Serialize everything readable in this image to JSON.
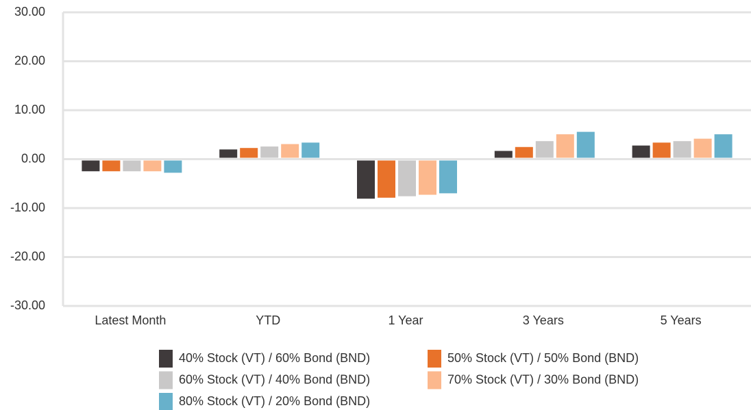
{
  "chart_data": {
    "type": "bar",
    "categories": [
      "Latest Month",
      "YTD",
      "1 Year",
      "3 Years",
      "5 Years"
    ],
    "series": [
      {
        "name": "40% Stock (VT) / 60% Bond (BND)",
        "color": "#3f3a3b",
        "values": [
          -2.2,
          1.7,
          -7.8,
          1.4,
          2.5
        ]
      },
      {
        "name": "50% Stock (VT) / 50% Bond (BND)",
        "color": "#e8722a",
        "values": [
          -2.2,
          2.0,
          -7.6,
          2.2,
          3.1
        ]
      },
      {
        "name": "60% Stock (VT) / 40% Bond (BND)",
        "color": "#c9c8c8",
        "values": [
          -2.2,
          2.3,
          -7.3,
          3.4,
          3.4
        ]
      },
      {
        "name": "70% Stock (VT) / 30% Bond (BND)",
        "color": "#fcb88d",
        "values": [
          -2.2,
          2.8,
          -7.0,
          4.8,
          3.9
        ]
      },
      {
        "name": "80% Stock (VT) / 20% Bond (BND)",
        "color": "#68b1cb",
        "values": [
          -2.5,
          3.1,
          -6.7,
          5.3,
          4.8
        ]
      }
    ],
    "ylim": [
      -30,
      30
    ],
    "yticks": [
      {
        "value": -30,
        "label": "-30.00"
      },
      {
        "value": -20,
        "label": "-20.00"
      },
      {
        "value": -10,
        "label": "-10.00"
      },
      {
        "value": 0,
        "label": "0.00"
      },
      {
        "value": 10,
        "label": "10.00"
      },
      {
        "value": 20,
        "label": "20.00"
      },
      {
        "value": 30,
        "label": "30.00"
      }
    ],
    "grid": true
  }
}
